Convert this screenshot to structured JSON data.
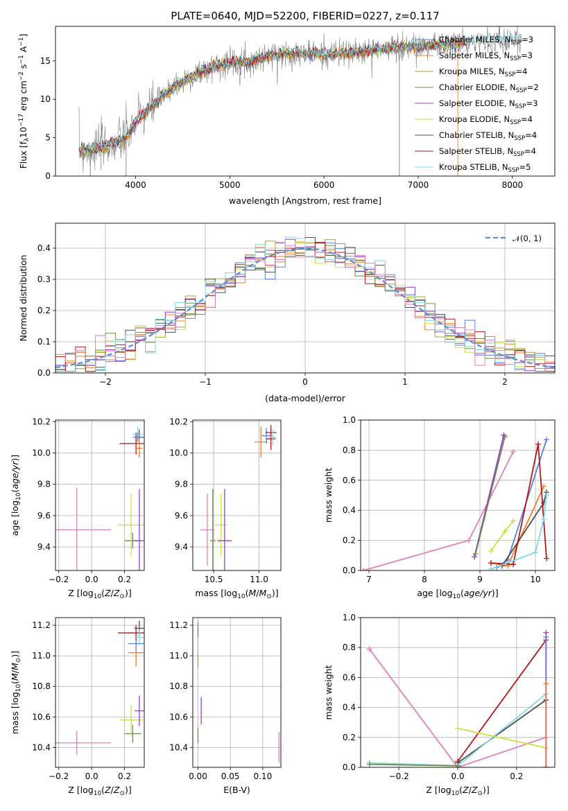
{
  "figure": {
    "title": "PLATE=0640, MJD=52200, FIBERID=0227, z=0.117"
  },
  "colors": {
    "CM": "#5b7fd9",
    "SM": "#f07f2a",
    "KM": "#b39b2e",
    "CE": "#6b8a4e",
    "SE": "#9a3fc7",
    "KE": "#c9e04a",
    "CS": "#4d4d4d",
    "SS": "#b2171a",
    "KS": "#7fd9e3",
    "gauss": "#5b8ad6",
    "pink": "#e37fb8"
  },
  "chart_data": [
    {
      "type": "line",
      "name": "spectrum",
      "xlabel": "wavelength [Angstrom, rest frame]",
      "ylabel": "Flux [f_λ10^-17 erg cm^-2 s^-1 A^-1]",
      "xlim": [
        3150,
        8450
      ],
      "ylim": [
        0,
        19.5
      ],
      "xticks": [
        "4000",
        "5000",
        "6000",
        "7000",
        "8000"
      ],
      "yticks": [
        "0",
        "5",
        "10",
        "15"
      ],
      "xtick_values": [
        4000,
        5000,
        6000,
        7000,
        8000
      ],
      "ytick_values": [
        0,
        5,
        10,
        15
      ],
      "legend_position": "right",
      "legend": [
        {
          "label": "Chabrier MILES, N",
          "sub": "SSP",
          "suffix": "=3",
          "color_key": "CM"
        },
        {
          "label": "Salpeter MILES, N",
          "sub": "SSP",
          "suffix": "=3",
          "color_key": "SM"
        },
        {
          "label": "Kroupa MILES, N",
          "sub": "SSP",
          "suffix": "=4",
          "color_key": "KM"
        },
        {
          "label": "Chabrier ELODIE, N",
          "sub": "SSP",
          "suffix": "=2",
          "color_key": "CE"
        },
        {
          "label": "Salpeter ELODIE, N",
          "sub": "SSP",
          "suffix": "=3",
          "color_key": "SE"
        },
        {
          "label": "Kroupa ELODIE, N",
          "sub": "SSP",
          "suffix": "=4",
          "color_key": "KE"
        },
        {
          "label": "Chabrier STELIB, N",
          "sub": "SSP",
          "suffix": "=4",
          "color_key": "CS"
        },
        {
          "label": "Salpeter STELIB, N",
          "sub": "SSP",
          "suffix": "=4",
          "color_key": "SS"
        },
        {
          "label": "Kroupa STELIB, N",
          "sub": "SSP",
          "suffix": "=5",
          "color_key": "KS"
        }
      ],
      "continuum": [
        [
          3400,
          3.4
        ],
        [
          3500,
          3.3
        ],
        [
          3600,
          3.6
        ],
        [
          3700,
          3.9
        ],
        [
          3800,
          4.4
        ],
        [
          3900,
          5.0
        ],
        [
          4000,
          7.0
        ],
        [
          4100,
          8.2
        ],
        [
          4200,
          9.3
        ],
        [
          4300,
          10.5
        ],
        [
          4400,
          11.6
        ],
        [
          4500,
          12.3
        ],
        [
          4600,
          13.0
        ],
        [
          4700,
          13.6
        ],
        [
          4800,
          14.1
        ],
        [
          4900,
          14.5
        ],
        [
          5000,
          14.8
        ],
        [
          5100,
          14.9
        ],
        [
          5200,
          14.8
        ],
        [
          5300,
          15.3
        ],
        [
          5400,
          15.6
        ],
        [
          5500,
          15.8
        ],
        [
          5600,
          15.9
        ],
        [
          5800,
          16.0
        ],
        [
          6000,
          15.8
        ],
        [
          6200,
          16.0
        ],
        [
          6400,
          16.2
        ],
        [
          6600,
          16.5
        ],
        [
          6800,
          16.8
        ],
        [
          7000,
          16.9
        ],
        [
          7200,
          17.1
        ],
        [
          7400,
          17.3
        ],
        [
          7600,
          17.5
        ],
        [
          7800,
          17.6
        ],
        [
          8000,
          17.8
        ],
        [
          8100,
          17.9
        ]
      ],
      "spikes": [
        3520,
        3900,
        6800,
        7420
      ]
    },
    {
      "type": "bar",
      "name": "residual-histogram",
      "xlabel": "(data-model)/error",
      "ylabel": "Normed distribution",
      "xlim": [
        -2.5,
        2.5
      ],
      "ylim": [
        0,
        0.48
      ],
      "xticks": [
        "−2",
        "−1",
        "0",
        "1",
        "2"
      ],
      "yticks": [
        "0.0",
        "0.1",
        "0.2",
        "0.3",
        "0.4"
      ],
      "xtick_values": [
        -2,
        -1,
        0,
        1,
        2
      ],
      "ytick_values": [
        0,
        0.1,
        0.2,
        0.3,
        0.4
      ],
      "legend": {
        "label": "𝒩(0, 1)",
        "position": "top-right"
      },
      "bin_width": 0.1
    },
    {
      "type": "scatter",
      "name": "age-vs-Z",
      "xlabel": "Z [log10(Z/Z⊙)]",
      "ylabel": "age  [log10(age/yr)]",
      "xlim": [
        -0.22,
        0.32
      ],
      "ylim": [
        9.25,
        10.21
      ],
      "xticks": [
        "−0.2",
        "0.0",
        "0.2"
      ],
      "xtick_values": [
        -0.2,
        0.0,
        0.2
      ],
      "yticks": [
        "9.4",
        "9.6",
        "9.8",
        "10.0",
        "10.2"
      ],
      "ytick_values": [
        9.4,
        9.6,
        9.8,
        10.0,
        10.2
      ],
      "points": [
        {
          "x": -0.09,
          "y": 9.51,
          "xerr": 0.21,
          "yerr": 0.27,
          "c": "pink"
        },
        {
          "x": 0.25,
          "y": 9.44,
          "xerr": 0.05,
          "yerr": 0.05,
          "c": "CE"
        },
        {
          "x": 0.24,
          "y": 9.54,
          "xerr": 0.08,
          "yerr": 0.2,
          "c": "KE"
        },
        {
          "x": 0.29,
          "y": 9.44,
          "xerr": 0.03,
          "yerr": 0.33,
          "c": "SE"
        },
        {
          "x": 0.27,
          "y": 10.06,
          "xerr": 0.1,
          "yerr": 0.07,
          "c": "SS"
        },
        {
          "x": 0.29,
          "y": 10.1,
          "xerr": 0.03,
          "yerr": 0.05,
          "c": "CS"
        },
        {
          "x": 0.28,
          "y": 10.12,
          "xerr": 0.03,
          "yerr": 0.05,
          "c": "KS"
        },
        {
          "x": 0.29,
          "y": 10.03,
          "xerr": 0.02,
          "yerr": 0.06,
          "c": "SM"
        },
        {
          "x": 0.28,
          "y": 10.1,
          "xerr": 0.03,
          "yerr": 0.03,
          "c": "CM"
        }
      ]
    },
    {
      "type": "scatter",
      "name": "age-vs-mass",
      "xlabel": "mass [log10(M/M⊙)]",
      "ylabel": "",
      "xlim": [
        10.27,
        11.24
      ],
      "ylim": [
        9.25,
        10.21
      ],
      "xticks": [
        "10.5",
        "11.0"
      ],
      "xtick_values": [
        10.5,
        11.0
      ],
      "yticks": [
        "9.4",
        "9.6",
        "9.8",
        "10.0",
        "10.2"
      ],
      "ytick_values": [
        9.4,
        9.6,
        9.8,
        10.0,
        10.2
      ],
      "points": [
        {
          "x": 10.43,
          "y": 9.51,
          "xerr": 0.08,
          "yerr": 0.23,
          "c": "pink"
        },
        {
          "x": 10.49,
          "y": 9.44,
          "xerr": 0.03,
          "yerr": 0.33,
          "c": "CE"
        },
        {
          "x": 10.58,
          "y": 9.54,
          "xerr": 0.07,
          "yerr": 0.2,
          "c": "KE"
        },
        {
          "x": 10.62,
          "y": 9.44,
          "xerr": 0.08,
          "yerr": 0.33,
          "c": "SE"
        },
        {
          "x": 11.02,
          "y": 10.07,
          "xerr": 0.07,
          "yerr": 0.1,
          "c": "SM"
        },
        {
          "x": 11.08,
          "y": 10.11,
          "xerr": 0.05,
          "yerr": 0.05,
          "c": "CM"
        },
        {
          "x": 11.13,
          "y": 10.13,
          "xerr": 0.06,
          "yerr": 0.05,
          "c": "CS"
        },
        {
          "x": 11.13,
          "y": 10.09,
          "xerr": 0.05,
          "yerr": 0.07,
          "c": "SS"
        },
        {
          "x": 11.15,
          "y": 10.1,
          "xerr": 0.04,
          "yerr": 0.05,
          "c": "KS"
        }
      ]
    },
    {
      "type": "line",
      "name": "massweight-vs-age",
      "xlabel": "age  [log10(age/yr)]",
      "ylabel": "mass weight",
      "xlim": [
        6.85,
        10.35
      ],
      "ylim": [
        0,
        1.0
      ],
      "xticks": [
        "7",
        "8",
        "9",
        "10"
      ],
      "xtick_values": [
        7,
        8,
        9,
        10
      ],
      "yticks": [
        "0.0",
        "0.2",
        "0.4",
        "0.6",
        "0.8",
        "1.0"
      ],
      "ytick_values": [
        0,
        0.2,
        0.4,
        0.6,
        0.8,
        1.0
      ],
      "series": [
        {
          "c": "pink",
          "x": [
            6.9,
            8.8,
            9.6
          ],
          "y": [
            0.0,
            0.2,
            0.79
          ]
        },
        {
          "c": "SE",
          "x": [
            8.9,
            9.43
          ],
          "y": [
            0.09,
            0.9
          ]
        },
        {
          "c": "CE",
          "x": [
            8.92,
            9.45
          ],
          "y": [
            0.11,
            0.89
          ]
        },
        {
          "c": "KE",
          "x": [
            9.2,
            9.45,
            9.6
          ],
          "y": [
            0.13,
            0.26,
            0.33
          ]
        },
        {
          "c": "CM",
          "x": [
            9.3,
            9.5,
            10.2
          ],
          "y": [
            0.02,
            0.07,
            0.87
          ]
        },
        {
          "c": "SM",
          "x": [
            9.2,
            9.5,
            10.15
          ],
          "y": [
            0.05,
            0.03,
            0.56
          ]
        },
        {
          "c": "CS",
          "x": [
            9.4,
            10.15,
            10.2
          ],
          "y": [
            0.03,
            0.45,
            0.52
          ]
        },
        {
          "c": "SS",
          "x": [
            9.2,
            9.6,
            10.05,
            10.2
          ],
          "y": [
            0.05,
            0.04,
            0.84,
            0.08
          ]
        },
        {
          "c": "KS",
          "x": [
            9.2,
            10.0,
            10.15,
            10.2
          ],
          "y": [
            0.01,
            0.12,
            0.34,
            0.5
          ]
        }
      ]
    },
    {
      "type": "scatter",
      "name": "mass-vs-Z",
      "xlabel": "Z [log10(Z/Z⊙)]",
      "ylabel": "mass [log10(M/M⊙)]",
      "xlim": [
        -0.22,
        0.32
      ],
      "ylim": [
        10.27,
        11.25
      ],
      "xticks": [
        "−0.2",
        "0.0",
        "0.2"
      ],
      "xtick_values": [
        -0.2,
        0.0,
        0.2
      ],
      "yticks": [
        "10.4",
        "10.6",
        "10.8",
        "11.0",
        "11.2"
      ],
      "ytick_values": [
        10.4,
        10.6,
        10.8,
        11.0,
        11.2
      ],
      "points": [
        {
          "x": -0.09,
          "y": 10.43,
          "xerr": 0.21,
          "yerr": 0.08,
          "c": "pink"
        },
        {
          "x": 0.25,
          "y": 10.49,
          "xerr": 0.05,
          "yerr": 0.06,
          "c": "CE"
        },
        {
          "x": 0.24,
          "y": 10.58,
          "xerr": 0.07,
          "yerr": 0.1,
          "c": "KE"
        },
        {
          "x": 0.29,
          "y": 10.64,
          "xerr": 0.03,
          "yerr": 0.1,
          "c": "SE"
        },
        {
          "x": 0.27,
          "y": 11.02,
          "xerr": 0.05,
          "yerr": 0.09,
          "c": "SM"
        },
        {
          "x": 0.27,
          "y": 11.08,
          "xerr": 0.05,
          "yerr": 0.05,
          "c": "CM"
        },
        {
          "x": 0.29,
          "y": 11.18,
          "xerr": 0.03,
          "yerr": 0.05,
          "c": "CS"
        },
        {
          "x": 0.27,
          "y": 11.15,
          "xerr": 0.11,
          "yerr": 0.05,
          "c": "SS"
        },
        {
          "x": 0.29,
          "y": 11.12,
          "xerr": 0.03,
          "yerr": 0.05,
          "c": "KS"
        }
      ]
    },
    {
      "type": "scatter",
      "name": "mass-vs-EBV",
      "xlabel": "E(B-V)",
      "ylabel": "",
      "xlim": [
        -0.008,
        0.128
      ],
      "ylim": [
        10.27,
        11.25
      ],
      "xticks": [
        "0.00",
        "0.05",
        "0.10"
      ],
      "xtick_values": [
        0,
        0.05,
        0.1
      ],
      "yticks": [
        "10.4",
        "10.6",
        "10.8",
        "11.0",
        "11.2"
      ],
      "ytick_values": [
        10.4,
        10.6,
        10.8,
        11.0,
        11.2
      ],
      "points": [
        {
          "x": 0.0,
          "y": 10.49,
          "xerr": 0,
          "yerr": 0.06,
          "c": "CE"
        },
        {
          "x": 0.0,
          "y": 10.58,
          "xerr": 0,
          "yerr": 0.05,
          "c": "KE"
        },
        {
          "x": 0.005,
          "y": 10.64,
          "xerr": 0,
          "yerr": 0.09,
          "c": "SE"
        },
        {
          "x": 0.0,
          "y": 11.0,
          "xerr": 0,
          "yerr": 0.08,
          "c": "SM"
        },
        {
          "x": 0.0,
          "y": 11.1,
          "xerr": 0,
          "yerr": 0.09,
          "c": "KS"
        },
        {
          "x": 0.0,
          "y": 11.17,
          "xerr": 0,
          "yerr": 0.05,
          "c": "CM"
        },
        {
          "x": 0.125,
          "y": 10.4,
          "xerr": 0,
          "yerr": 0.1,
          "c": "pink"
        }
      ]
    },
    {
      "type": "line",
      "name": "massweight-vs-Z",
      "xlabel": "Z [log10(Z/Z⊙)]",
      "ylabel": "mass weight",
      "xlim": [
        -0.33,
        0.33
      ],
      "ylim": [
        0,
        1.0
      ],
      "xticks": [
        "−0.2",
        "0.0",
        "0.2"
      ],
      "xtick_values": [
        -0.2,
        0.0,
        0.2
      ],
      "yticks": [
        "0.0",
        "0.2",
        "0.4",
        "0.6",
        "0.8",
        "1.0"
      ],
      "ytick_values": [
        0,
        0.2,
        0.4,
        0.6,
        0.8,
        1.0
      ],
      "series": [
        {
          "c": "pink",
          "x": [
            -0.3,
            0.0,
            0.3
          ],
          "y": [
            0.79,
            0.0,
            0.2
          ]
        },
        {
          "c": "SS",
          "x": [
            0.0,
            0.3
          ],
          "y": [
            0.04,
            0.85
          ]
        },
        {
          "c": "CS",
          "x": [
            0.0,
            0.3
          ],
          "y": [
            0.03,
            0.45
          ]
        },
        {
          "c": "KS",
          "x": [
            -0.3,
            0.0,
            0.3
          ],
          "y": [
            0.03,
            0.01,
            0.49
          ]
        },
        {
          "c": "CE",
          "x": [
            -0.3,
            0.0
          ],
          "y": [
            0.02,
            0.01
          ]
        },
        {
          "c": "KE",
          "x": [
            0.0,
            0.3
          ],
          "y": [
            0.26,
            0.13
          ]
        },
        {
          "c": "SE",
          "x": [
            0.3,
            0.3
          ],
          "y": [
            0.0,
            0.9
          ]
        },
        {
          "c": "CM",
          "x": [
            0.3,
            0.3
          ],
          "y": [
            0.0,
            0.87
          ]
        },
        {
          "c": "SM",
          "x": [
            0.3,
            0.3
          ],
          "y": [
            0.0,
            0.56
          ]
        }
      ]
    }
  ]
}
